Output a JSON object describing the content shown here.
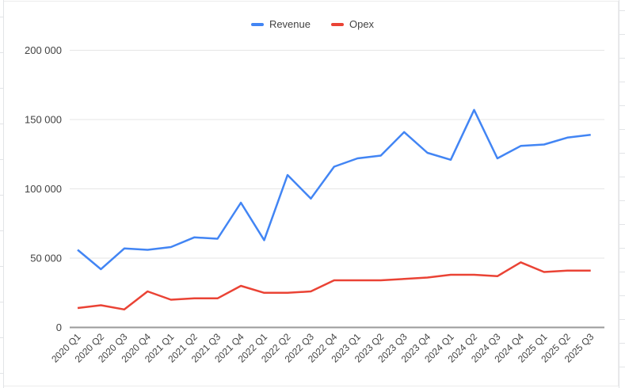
{
  "page": {
    "background": "#ffffff",
    "frame_border_color": "#ececec",
    "sheet_gridline_color": "#e2e4e7"
  },
  "legend": {
    "position": "top-center",
    "items": [
      {
        "label": "Revenue",
        "color": "#4285f4"
      },
      {
        "label": "Opex",
        "color": "#ea4335"
      }
    ]
  },
  "axis": {
    "label_color": "#424242",
    "grid_color": "#e6e6e6",
    "zero_line_color": "#9a9a9a"
  },
  "chart_data": {
    "type": "line",
    "title": "",
    "xlabel": "",
    "ylabel": "",
    "legend_position": "top",
    "grid": true,
    "x_label_rotation": 45,
    "ylim": [
      0,
      200000
    ],
    "yticks": [
      0,
      50000,
      100000,
      150000,
      200000
    ],
    "ytick_labels": [
      "0",
      "50 000",
      "100 000",
      "150 000",
      "200 000"
    ],
    "categories": [
      "2020 Q1",
      "2020 Q2",
      "2020 Q3",
      "2020 Q4",
      "2021 Q1",
      "2021 Q2",
      "2021 Q3",
      "2021 Q4",
      "2022 Q1",
      "2022 Q2",
      "2022 Q3",
      "2022 Q4",
      "2023 Q1",
      "2023 Q2",
      "2023 Q3",
      "2023 Q4",
      "2024 Q1",
      "2024 Q2",
      "2024 Q3",
      "2024 Q4",
      "2025 Q1",
      "2025 Q2",
      "2025 Q3"
    ],
    "series": [
      {
        "name": "Revenue",
        "color": "#4285f4",
        "values": [
          56000,
          42000,
          57000,
          56000,
          58000,
          65000,
          64000,
          90000,
          63000,
          110000,
          93000,
          116000,
          122000,
          124000,
          141000,
          126000,
          121000,
          157000,
          122000,
          131000,
          132000,
          137000,
          139000
        ]
      },
      {
        "name": "Opex",
        "color": "#ea4335",
        "values": [
          14000,
          16000,
          13000,
          26000,
          20000,
          21000,
          21000,
          30000,
          25000,
          25000,
          26000,
          34000,
          34000,
          34000,
          35000,
          36000,
          38000,
          38000,
          37000,
          47000,
          40000,
          41000,
          41000
        ]
      }
    ]
  }
}
